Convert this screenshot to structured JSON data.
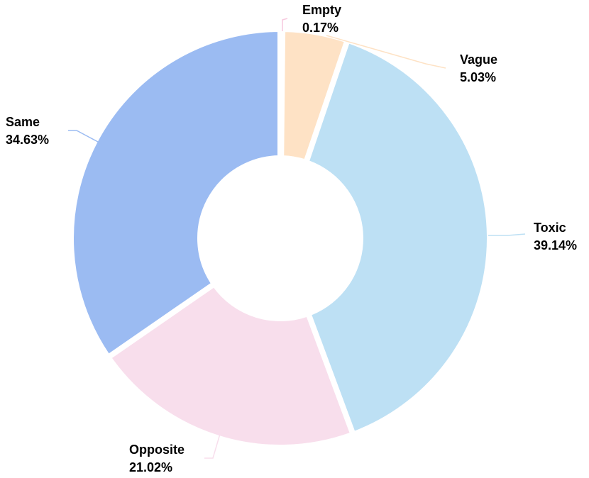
{
  "chart_data": {
    "type": "pie",
    "variant": "donut",
    "title": "",
    "legend": "none",
    "slices": [
      {
        "label": "Empty",
        "value": 0.17,
        "display": "0.17%",
        "color": "#F7C9DE"
      },
      {
        "label": "Vague",
        "value": 5.03,
        "display": "5.03%",
        "color": "#FEE2C5"
      },
      {
        "label": "Toxic",
        "value": 39.14,
        "display": "39.14%",
        "color": "#BDE0F4"
      },
      {
        "label": "Opposite",
        "value": 21.02,
        "display": "21.02%",
        "color": "#F8DEEC"
      },
      {
        "label": "Same",
        "value": 34.63,
        "display": "34.63%",
        "color": "#9BBBF2"
      }
    ]
  }
}
